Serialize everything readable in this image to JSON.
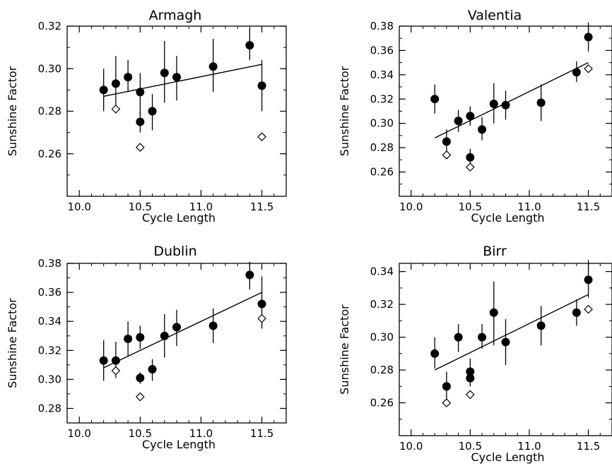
{
  "chart_data": [
    {
      "type": "scatter",
      "title": "Armagh",
      "xlabel": "Cycle Length",
      "ylabel": "Sunshine Factor",
      "xlim": [
        9.9,
        11.7
      ],
      "ylim": [
        0.24,
        0.32
      ],
      "xticks": [
        "10.0",
        "10.5",
        "11.0",
        "11.5"
      ],
      "yticks": [
        "0.26",
        "0.28",
        "0.30",
        "0.32"
      ],
      "grid": false,
      "series": [
        {
          "marker": "filled-circle",
          "points": [
            {
              "x": 10.2,
              "y": 0.29,
              "err_lo": 0.28,
              "err_hi": 0.3
            },
            {
              "x": 10.3,
              "y": 0.293,
              "err_lo": 0.281,
              "err_hi": 0.306
            },
            {
              "x": 10.4,
              "y": 0.296,
              "err_lo": 0.289,
              "err_hi": 0.304
            },
            {
              "x": 10.5,
              "y": 0.289,
              "err_lo": 0.278,
              "err_hi": 0.298
            },
            {
              "x": 10.5,
              "y": 0.275,
              "err_lo": 0.27,
              "err_hi": 0.28
            },
            {
              "x": 10.6,
              "y": 0.28,
              "err_lo": 0.271,
              "err_hi": 0.288
            },
            {
              "x": 10.7,
              "y": 0.298,
              "err_lo": 0.284,
              "err_hi": 0.313
            },
            {
              "x": 10.8,
              "y": 0.296,
              "err_lo": 0.285,
              "err_hi": 0.306
            },
            {
              "x": 11.1,
              "y": 0.301,
              "err_lo": 0.289,
              "err_hi": 0.314
            },
            {
              "x": 11.4,
              "y": 0.311,
              "err_lo": 0.304,
              "err_hi": 0.319
            },
            {
              "x": 11.5,
              "y": 0.292,
              "err_lo": 0.28,
              "err_hi": 0.304
            }
          ]
        },
        {
          "marker": "open-diamond",
          "points": [
            {
              "x": 10.3,
              "y": 0.281
            },
            {
              "x": 10.5,
              "y": 0.263
            },
            {
              "x": 11.5,
              "y": 0.268
            }
          ]
        }
      ],
      "fit_line": {
        "x": [
          10.2,
          11.5
        ],
        "y": [
          0.287,
          0.302
        ]
      }
    },
    {
      "type": "scatter",
      "title": "Valentia",
      "xlabel": "Cycle Length",
      "ylabel": "Sunshine Factor",
      "xlim": [
        9.9,
        11.7
      ],
      "ylim": [
        0.24,
        0.38
      ],
      "xticks": [
        "10.0",
        "10.5",
        "11.0",
        "11.5"
      ],
      "yticks": [
        "0.26",
        "0.28",
        "0.30",
        "0.32",
        "0.34",
        "0.36",
        "0.38"
      ],
      "grid": false,
      "series": [
        {
          "marker": "filled-circle",
          "points": [
            {
              "x": 10.2,
              "y": 0.32,
              "err_lo": 0.308,
              "err_hi": 0.332
            },
            {
              "x": 10.3,
              "y": 0.285,
              "err_lo": 0.276,
              "err_hi": 0.295
            },
            {
              "x": 10.4,
              "y": 0.302,
              "err_lo": 0.293,
              "err_hi": 0.311
            },
            {
              "x": 10.5,
              "y": 0.306,
              "err_lo": 0.298,
              "err_hi": 0.314
            },
            {
              "x": 10.5,
              "y": 0.272,
              "err_lo": 0.266,
              "err_hi": 0.279
            },
            {
              "x": 10.6,
              "y": 0.295,
              "err_lo": 0.286,
              "err_hi": 0.305
            },
            {
              "x": 10.7,
              "y": 0.316,
              "err_lo": 0.3,
              "err_hi": 0.333
            },
            {
              "x": 10.8,
              "y": 0.315,
              "err_lo": 0.303,
              "err_hi": 0.327
            },
            {
              "x": 11.1,
              "y": 0.317,
              "err_lo": 0.302,
              "err_hi": 0.332
            },
            {
              "x": 11.4,
              "y": 0.342,
              "err_lo": 0.334,
              "err_hi": 0.351
            },
            {
              "x": 11.5,
              "y": 0.371,
              "err_lo": 0.359,
              "err_hi": 0.383
            }
          ]
        },
        {
          "marker": "open-diamond",
          "points": [
            {
              "x": 10.3,
              "y": 0.274
            },
            {
              "x": 10.5,
              "y": 0.264
            },
            {
              "x": 11.5,
              "y": 0.345
            }
          ]
        }
      ],
      "fit_line": {
        "x": [
          10.2,
          11.5
        ],
        "y": [
          0.288,
          0.35
        ]
      }
    },
    {
      "type": "scatter",
      "title": "Dublin",
      "xlabel": "Cycle Length",
      "ylabel": "Sunshine Factor",
      "xlim": [
        9.9,
        11.7
      ],
      "ylim": [
        0.27,
        0.38
      ],
      "xticks": [
        "10.0",
        "10.5",
        "11.0",
        "11.5"
      ],
      "yticks": [
        "0.28",
        "0.30",
        "0.32",
        "0.34",
        "0.36",
        "0.38"
      ],
      "grid": false,
      "series": [
        {
          "marker": "filled-circle",
          "points": [
            {
              "x": 10.2,
              "y": 0.313,
              "err_lo": 0.299,
              "err_hi": 0.327
            },
            {
              "x": 10.3,
              "y": 0.313,
              "err_lo": 0.301,
              "err_hi": 0.326
            },
            {
              "x": 10.4,
              "y": 0.328,
              "err_lo": 0.316,
              "err_hi": 0.34
            },
            {
              "x": 10.5,
              "y": 0.329,
              "err_lo": 0.321,
              "err_hi": 0.337
            },
            {
              "x": 10.5,
              "y": 0.301,
              "err_lo": 0.297,
              "err_hi": 0.305
            },
            {
              "x": 10.6,
              "y": 0.307,
              "err_lo": 0.299,
              "err_hi": 0.314
            },
            {
              "x": 10.7,
              "y": 0.33,
              "err_lo": 0.315,
              "err_hi": 0.345
            },
            {
              "x": 10.8,
              "y": 0.336,
              "err_lo": 0.323,
              "err_hi": 0.348
            },
            {
              "x": 11.1,
              "y": 0.337,
              "err_lo": 0.325,
              "err_hi": 0.349
            },
            {
              "x": 11.4,
              "y": 0.372,
              "err_lo": 0.362,
              "err_hi": 0.381
            },
            {
              "x": 11.5,
              "y": 0.352,
              "err_lo": 0.335,
              "err_hi": 0.371
            }
          ]
        },
        {
          "marker": "open-diamond",
          "points": [
            {
              "x": 10.3,
              "y": 0.306
            },
            {
              "x": 10.5,
              "y": 0.288
            },
            {
              "x": 11.5,
              "y": 0.342
            }
          ]
        }
      ],
      "fit_line": {
        "x": [
          10.2,
          11.5
        ],
        "y": [
          0.308,
          0.36
        ]
      }
    },
    {
      "type": "scatter",
      "title": "Birr",
      "xlabel": "Cycle Length",
      "ylabel": "Sunshine Factor",
      "xlim": [
        9.9,
        11.7
      ],
      "ylim": [
        0.24,
        0.345
      ],
      "xticks": [
        "10.0",
        "10.5",
        "11.0",
        "11.5"
      ],
      "yticks": [
        "0.26",
        "0.28",
        "0.30",
        "0.32",
        "0.34"
      ],
      "grid": false,
      "series": [
        {
          "marker": "filled-circle",
          "points": [
            {
              "x": 10.2,
              "y": 0.29,
              "err_lo": 0.281,
              "err_hi": 0.3
            },
            {
              "x": 10.3,
              "y": 0.27,
              "err_lo": 0.262,
              "err_hi": 0.279
            },
            {
              "x": 10.4,
              "y": 0.3,
              "err_lo": 0.291,
              "err_hi": 0.308
            },
            {
              "x": 10.5,
              "y": 0.279,
              "err_lo": 0.273,
              "err_hi": 0.287
            },
            {
              "x": 10.5,
              "y": 0.275,
              "err_lo": 0.27,
              "err_hi": 0.28
            },
            {
              "x": 10.6,
              "y": 0.3,
              "err_lo": 0.293,
              "err_hi": 0.308
            },
            {
              "x": 10.7,
              "y": 0.315,
              "err_lo": 0.295,
              "err_hi": 0.334
            },
            {
              "x": 10.8,
              "y": 0.297,
              "err_lo": 0.283,
              "err_hi": 0.311
            },
            {
              "x": 11.1,
              "y": 0.307,
              "err_lo": 0.295,
              "err_hi": 0.319
            },
            {
              "x": 11.4,
              "y": 0.315,
              "err_lo": 0.307,
              "err_hi": 0.323
            },
            {
              "x": 11.5,
              "y": 0.335,
              "err_lo": 0.324,
              "err_hi": 0.347
            }
          ]
        },
        {
          "marker": "open-diamond",
          "points": [
            {
              "x": 10.3,
              "y": 0.26
            },
            {
              "x": 10.5,
              "y": 0.265
            },
            {
              "x": 11.5,
              "y": 0.317
            }
          ]
        }
      ],
      "fit_line": {
        "x": [
          10.2,
          11.5
        ],
        "y": [
          0.28,
          0.326
        ]
      }
    }
  ]
}
